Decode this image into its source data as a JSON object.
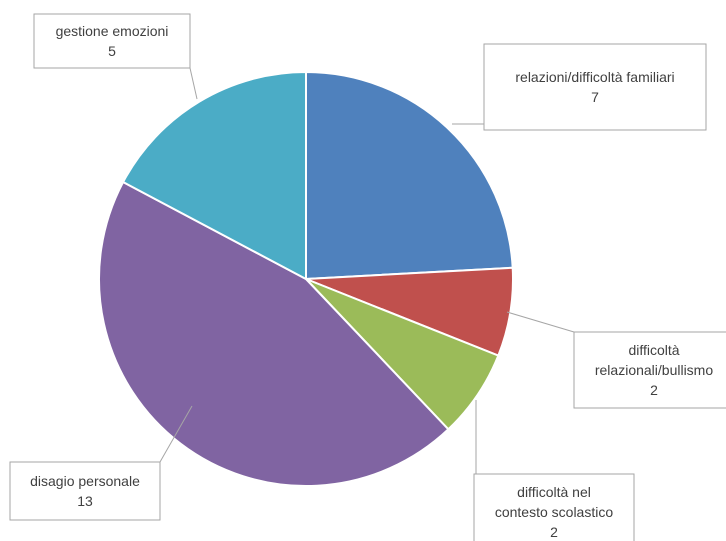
{
  "chart_data": {
    "type": "pie",
    "title": "",
    "legend": "none",
    "slices": [
      {
        "label": "relazioni/difficoltà familiari",
        "label_lines": [
          "relazioni/difficoltà familiari"
        ],
        "value": 7,
        "color": "#4f81bd"
      },
      {
        "label": "difficoltà relazionali/bullismo",
        "label_lines": [
          "difficoltà",
          "relazionali/bullismo"
        ],
        "value": 2,
        "color": "#c0504d"
      },
      {
        "label": "difficoltà nel contesto scolastico",
        "label_lines": [
          "difficoltà nel",
          "contesto scolastico"
        ],
        "value": 2,
        "color": "#9bbb59"
      },
      {
        "label": "disagio personale",
        "label_lines": [
          "disagio personale"
        ],
        "value": 13,
        "color": "#8064a2"
      },
      {
        "label": "gestione emozioni",
        "label_lines": [
          "gestione emozioni"
        ],
        "value": 5,
        "color": "#4bacc6"
      }
    ]
  }
}
